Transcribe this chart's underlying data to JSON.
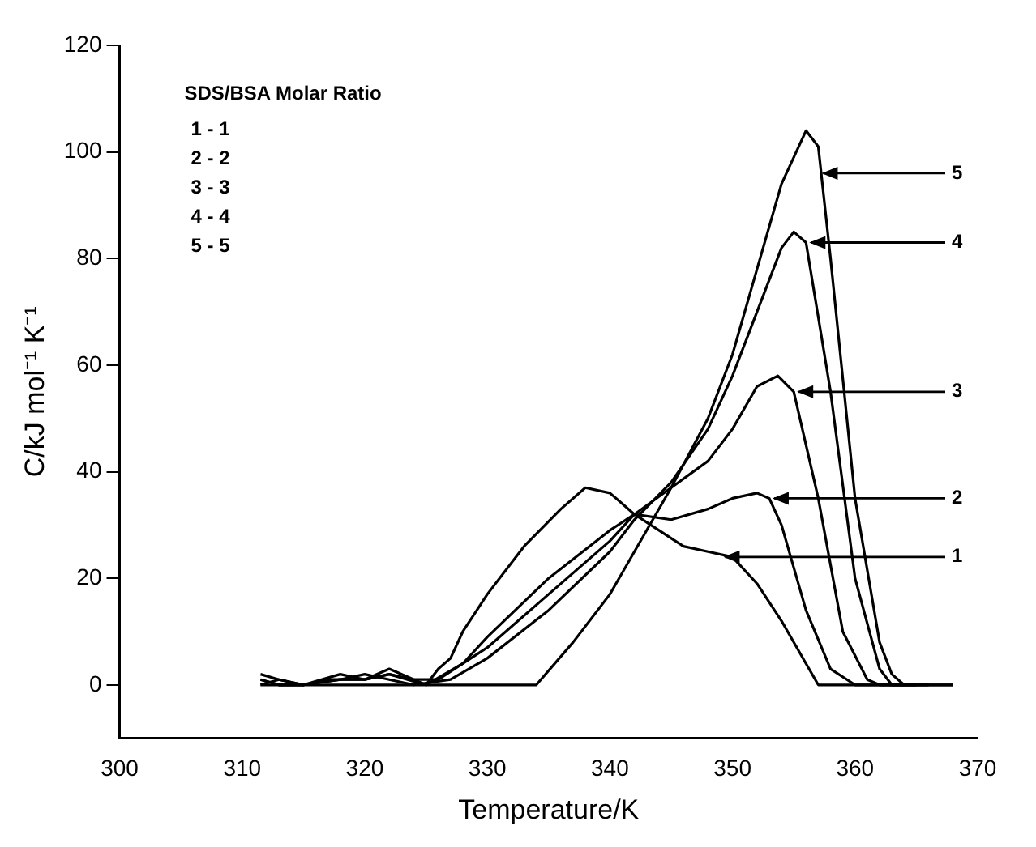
{
  "chart_data": {
    "type": "line",
    "xlabel": "Temperature/K",
    "ylabel": "C/kJ mol⁻¹ K⁻¹",
    "legend_title": "SDS/BSA Molar Ratio",
    "xlim": [
      300,
      370
    ],
    "xticks": [
      300,
      310,
      320,
      330,
      340,
      350,
      360,
      370
    ],
    "ylim": [
      -10,
      120
    ],
    "yticks": [
      0,
      20,
      40,
      60,
      80,
      100,
      120
    ],
    "grid": false,
    "legend": false,
    "marker": "none",
    "line_style": "solid",
    "series": [
      {
        "color": "#000000",
        "x": [
          311.5,
          313,
          315,
          317,
          320,
          322,
          325,
          326,
          327,
          328,
          330,
          333,
          336,
          338,
          340,
          342,
          344,
          346,
          348,
          350,
          352,
          354,
          356,
          357,
          360,
          364,
          368
        ],
        "values": [
          1,
          0,
          0,
          1,
          1,
          2,
          0,
          3,
          5,
          10,
          17,
          26,
          33,
          37,
          36,
          32,
          29,
          26,
          25,
          24,
          19,
          12,
          4,
          0,
          0,
          0,
          0
        ]
      },
      {
        "color": "#000000",
        "x": [
          311.5,
          313,
          315,
          318,
          320,
          322,
          325,
          328,
          330,
          335,
          340,
          342,
          345,
          348,
          350,
          352,
          353,
          354,
          356,
          358,
          360,
          364
        ],
        "values": [
          2,
          1,
          0,
          2,
          1,
          3,
          0,
          4,
          9,
          20,
          29,
          32,
          31,
          33,
          35,
          36,
          35,
          30,
          14,
          3,
          0,
          0
        ]
      },
      {
        "color": "#000000",
        "x": [
          311.5,
          313,
          315,
          318,
          320,
          322,
          324,
          326,
          330,
          335,
          340,
          342,
          345,
          348,
          350,
          352,
          353.7,
          355,
          357,
          359,
          361,
          362,
          365
        ],
        "values": [
          0,
          1,
          0,
          1,
          1,
          2,
          1,
          1,
          7,
          17,
          27,
          32,
          37,
          42,
          48,
          56,
          58,
          55,
          35,
          10,
          1,
          0,
          0
        ]
      },
      {
        "color": "#000000",
        "x": [
          311.5,
          313,
          315,
          318,
          320,
          322,
          324,
          327,
          330,
          335,
          340,
          342,
          345,
          348,
          350,
          352,
          354,
          355,
          356,
          358,
          360,
          362,
          363,
          366
        ],
        "values": [
          1,
          0,
          0,
          1,
          2,
          1,
          0,
          1,
          5,
          14,
          25,
          31,
          38,
          48,
          58,
          70,
          82,
          85,
          83,
          55,
          20,
          3,
          0,
          0
        ]
      },
      {
        "color": "#000000",
        "x": [
          311.5,
          315,
          320,
          325,
          330,
          333,
          334,
          337,
          340,
          342,
          345,
          348,
          350,
          352,
          354,
          356,
          357,
          358,
          360,
          362,
          363,
          364,
          368
        ],
        "values": [
          0,
          0,
          0,
          0,
          0,
          0,
          0,
          8,
          17,
          25,
          37,
          50,
          62,
          78,
          94,
          104,
          101,
          80,
          35,
          8,
          2,
          0,
          0
        ]
      }
    ],
    "annotations": [
      "1 - 1",
      "2 - 2",
      "3 - 3",
      "4 - 4",
      "5 - 5",
      {
        "text": "1",
        "x": 349,
        "y": 24
      },
      {
        "text": "2",
        "x": 353,
        "y": 35
      },
      {
        "text": "3",
        "x": 355,
        "y": 55
      },
      {
        "text": "4",
        "x": 356,
        "y": 83
      },
      {
        "text": "5",
        "x": 357,
        "y": 96
      }
    ]
  }
}
